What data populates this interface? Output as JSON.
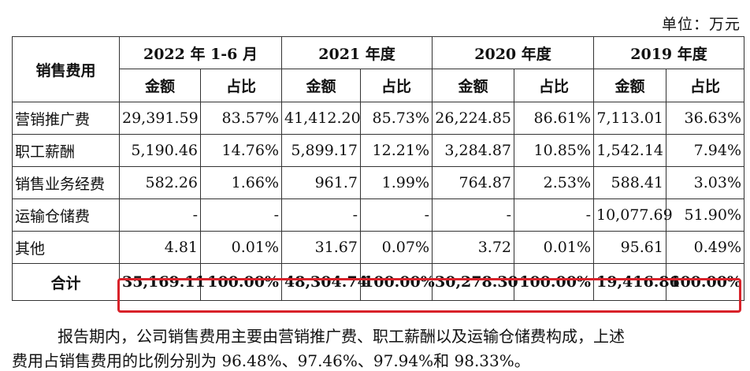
{
  "unit_label": "单位：万元",
  "table": {
    "corner_header": "销售费用",
    "periods": [
      "2022 年 1-6 月",
      "2021 年度",
      "2020 年度",
      "2019 年度"
    ],
    "amount_label": "金额",
    "ratio_label": "占比",
    "rows": [
      {
        "name": "营销推广费",
        "cells": [
          "29,391.59",
          "83.57%",
          "41,412.20",
          "85.73%",
          "26,224.85",
          "86.61%",
          "7,113.01",
          "36.63%"
        ]
      },
      {
        "name": "职工薪酬",
        "cells": [
          "5,190.46",
          "14.76%",
          "5,899.17",
          "12.21%",
          "3,284.87",
          "10.85%",
          "1,542.14",
          "7.94%"
        ]
      },
      {
        "name": "销售业务经费",
        "cells": [
          "582.26",
          "1.66%",
          "961.7",
          "1.99%",
          "764.87",
          "2.53%",
          "588.41",
          "3.03%"
        ]
      },
      {
        "name": "运输仓储费",
        "cells": [
          "-",
          "-",
          "-",
          "-",
          "-",
          "-",
          "10,077.69",
          "51.90%"
        ]
      },
      {
        "name": "其他",
        "cells": [
          "4.81",
          "0.01%",
          "31.67",
          "0.07%",
          "3.72",
          "0.01%",
          "95.61",
          "0.49%"
        ]
      }
    ],
    "total": {
      "name": "合计",
      "cells": [
        "35,169.11",
        "100.00%",
        "48,304.74",
        "100.00%",
        "30,278.30",
        "100.00%",
        "19,416.86",
        "100.00%"
      ]
    }
  },
  "highlight_color": "#d8222a",
  "paragraph": {
    "line1": "报告期内，公司销售费用主要由营销推广费、职工薪酬以及运输仓储费构成，上述",
    "line2": "费用占销售费用的比例分别为 96.48%、97.46%、97.94%和 98.33%。"
  }
}
